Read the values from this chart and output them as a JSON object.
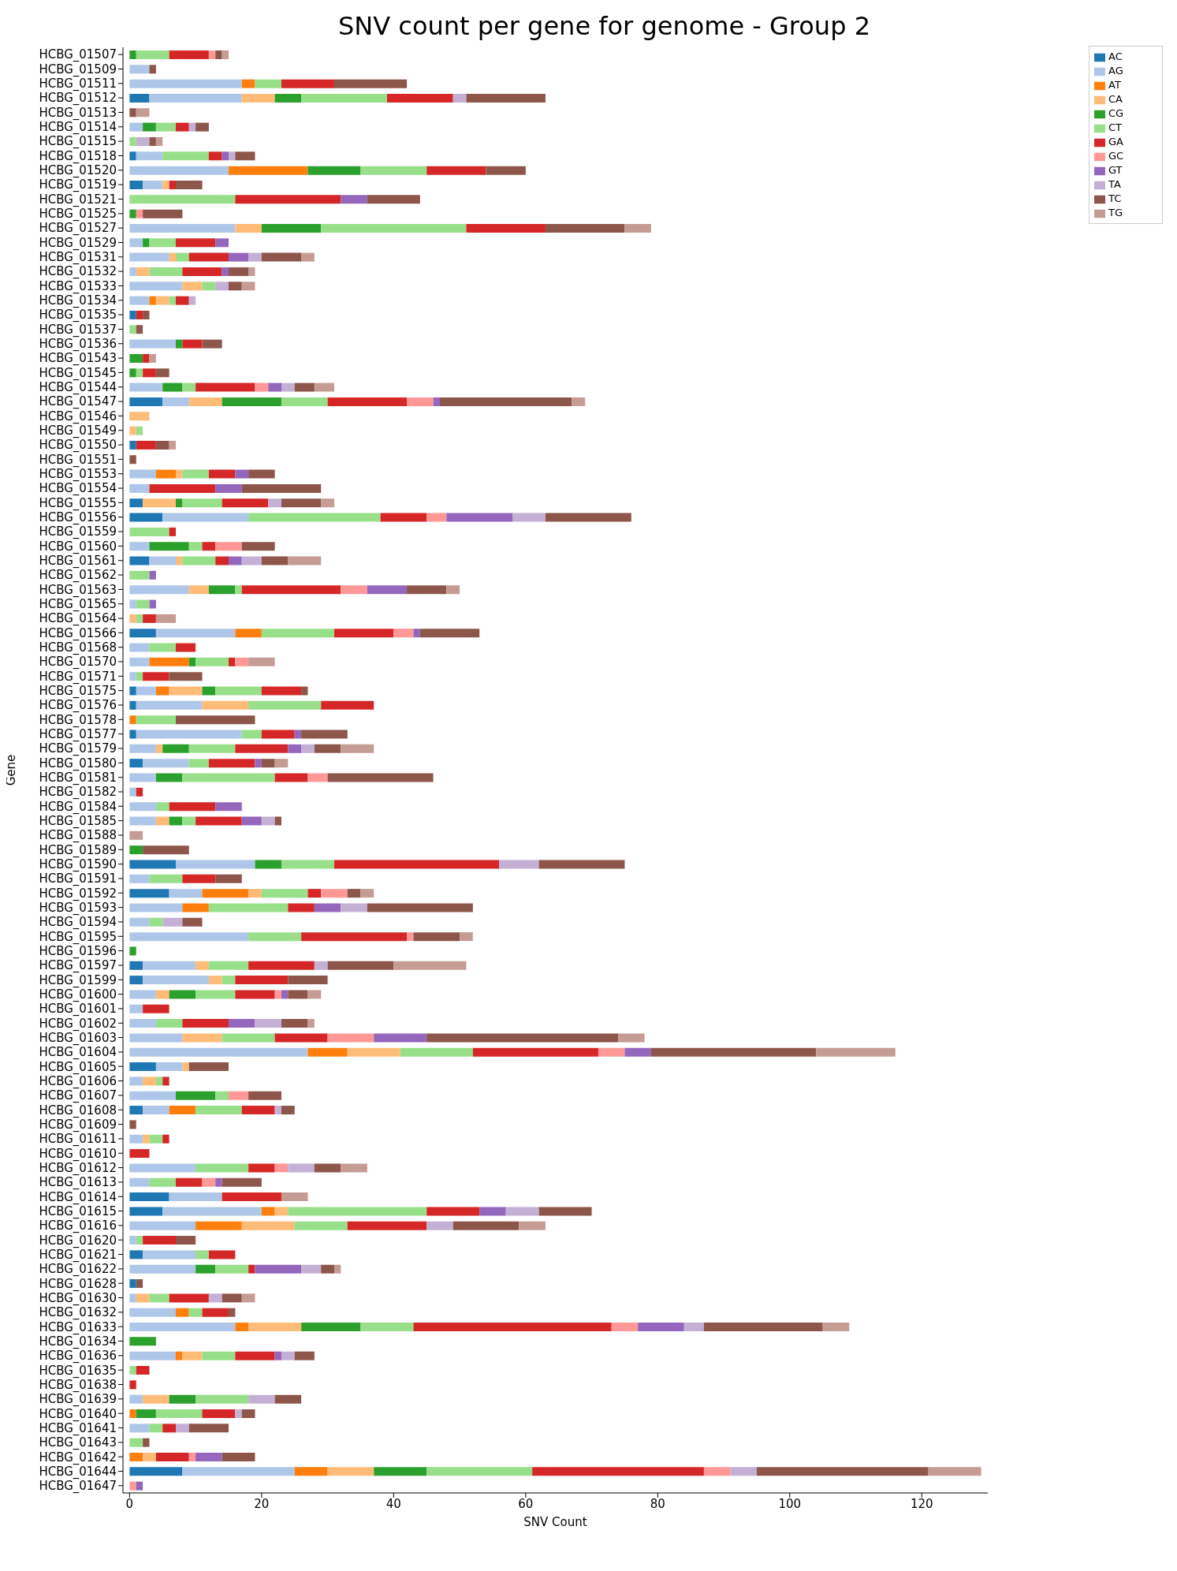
{
  "chart_data": {
    "type": "bar",
    "orientation": "horizontal",
    "stacked": true,
    "title": "SNV count per gene for genome - Group 2",
    "xlabel": "SNV Count",
    "ylabel": "Gene",
    "legend": "top right",
    "grid": false,
    "xlim": [
      -1,
      130
    ],
    "xticks": [
      0,
      20,
      40,
      60,
      80,
      100,
      120
    ],
    "categories": [
      "HCBG_01507",
      "HCBG_01509",
      "HCBG_01511",
      "HCBG_01512",
      "HCBG_01513",
      "HCBG_01514",
      "HCBG_01515",
      "HCBG_01518",
      "HCBG_01520",
      "HCBG_01519",
      "HCBG_01521",
      "HCBG_01525",
      "HCBG_01527",
      "HCBG_01529",
      "HCBG_01531",
      "HCBG_01532",
      "HCBG_01533",
      "HCBG_01534",
      "HCBG_01535",
      "HCBG_01537",
      "HCBG_01536",
      "HCBG_01543",
      "HCBG_01545",
      "HCBG_01544",
      "HCBG_01547",
      "HCBG_01546",
      "HCBG_01549",
      "HCBG_01550",
      "HCBG_01551",
      "HCBG_01553",
      "HCBG_01554",
      "HCBG_01555",
      "HCBG_01556",
      "HCBG_01559",
      "HCBG_01560",
      "HCBG_01561",
      "HCBG_01562",
      "HCBG_01563",
      "HCBG_01565",
      "HCBG_01564",
      "HCBG_01566",
      "HCBG_01568",
      "HCBG_01570",
      "HCBG_01571",
      "HCBG_01575",
      "HCBG_01576",
      "HCBG_01578",
      "HCBG_01577",
      "HCBG_01579",
      "HCBG_01580",
      "HCBG_01581",
      "HCBG_01582",
      "HCBG_01584",
      "HCBG_01585",
      "HCBG_01588",
      "HCBG_01589",
      "HCBG_01590",
      "HCBG_01591",
      "HCBG_01592",
      "HCBG_01593",
      "HCBG_01594",
      "HCBG_01595",
      "HCBG_01596",
      "HCBG_01597",
      "HCBG_01599",
      "HCBG_01600",
      "HCBG_01601",
      "HCBG_01602",
      "HCBG_01603",
      "HCBG_01604",
      "HCBG_01605",
      "HCBG_01606",
      "HCBG_01607",
      "HCBG_01608",
      "HCBG_01609",
      "HCBG_01611",
      "HCBG_01610",
      "HCBG_01612",
      "HCBG_01613",
      "HCBG_01614",
      "HCBG_01615",
      "HCBG_01616",
      "HCBG_01620",
      "HCBG_01621",
      "HCBG_01622",
      "HCBG_01628",
      "HCBG_01630",
      "HCBG_01632",
      "HCBG_01633",
      "HCBG_01634",
      "HCBG_01636",
      "HCBG_01635",
      "HCBG_01638",
      "HCBG_01639",
      "HCBG_01640",
      "HCBG_01641",
      "HCBG_01643",
      "HCBG_01642",
      "HCBG_01644",
      "HCBG_01647"
    ],
    "series": [
      {
        "name": "AC",
        "color": "#1f77b4",
        "values": [
          0,
          0,
          0,
          3,
          0,
          0,
          0,
          1,
          0,
          2,
          0,
          0,
          0,
          0,
          0,
          0,
          0,
          0,
          1,
          0,
          0,
          0,
          0,
          0,
          5,
          0,
          0,
          1,
          0,
          0,
          0,
          2,
          5,
          0,
          0,
          3,
          0,
          0,
          0,
          0,
          4,
          0,
          0,
          0,
          1,
          1,
          0,
          1,
          0,
          2,
          0,
          0,
          0,
          0,
          0,
          0,
          7,
          0,
          6,
          0,
          0,
          0,
          0,
          2,
          2,
          0,
          0,
          0,
          0,
          0,
          4,
          0,
          0,
          2,
          0,
          0,
          0,
          0,
          0,
          6,
          5,
          0,
          0,
          2,
          0,
          1,
          0,
          0,
          0,
          0,
          0,
          0,
          0,
          0,
          0,
          0,
          0,
          0,
          8,
          0
        ]
      },
      {
        "name": "AG",
        "color": "#aec7e8",
        "values": [
          0,
          3,
          17,
          14,
          0,
          2,
          0,
          4,
          15,
          3,
          0,
          0,
          16,
          2,
          6,
          1,
          8,
          3,
          0,
          0,
          7,
          0,
          0,
          5,
          4,
          0,
          0,
          0,
          0,
          4,
          3,
          0,
          13,
          0,
          3,
          4,
          0,
          9,
          1,
          0,
          12,
          3,
          3,
          1,
          3,
          10,
          0,
          16,
          4,
          7,
          4,
          1,
          4,
          4,
          0,
          0,
          12,
          3,
          5,
          8,
          3,
          18,
          0,
          8,
          10,
          4,
          2,
          4,
          8,
          27,
          4,
          2,
          7,
          4,
          0,
          2,
          0,
          10,
          3,
          8,
          15,
          10,
          1,
          8,
          10,
          0,
          1,
          7,
          16,
          0,
          7,
          0,
          0,
          2,
          0,
          3,
          0,
          0,
          17,
          0
        ]
      },
      {
        "name": "AT",
        "color": "#ff7f0e",
        "values": [
          0,
          0,
          2,
          0,
          0,
          0,
          0,
          0,
          12,
          0,
          0,
          0,
          0,
          0,
          0,
          0,
          0,
          1,
          0,
          0,
          0,
          0,
          0,
          0,
          0,
          0,
          0,
          0,
          0,
          3,
          0,
          0,
          0,
          0,
          0,
          0,
          0,
          0,
          0,
          0,
          4,
          0,
          6,
          0,
          2,
          0,
          1,
          0,
          0,
          0,
          0,
          0,
          0,
          0,
          0,
          0,
          0,
          0,
          7,
          4,
          0,
          0,
          0,
          0,
          0,
          0,
          0,
          0,
          0,
          6,
          0,
          0,
          0,
          4,
          0,
          0,
          0,
          0,
          0,
          0,
          2,
          7,
          0,
          0,
          0,
          0,
          0,
          2,
          2,
          0,
          1,
          0,
          0,
          0,
          1,
          0,
          0,
          2,
          5,
          0
        ]
      },
      {
        "name": "CA",
        "color": "#ffbb78",
        "values": [
          0,
          0,
          0,
          5,
          0,
          0,
          0,
          0,
          0,
          1,
          0,
          0,
          4,
          0,
          1,
          2,
          3,
          2,
          0,
          0,
          0,
          0,
          0,
          0,
          5,
          3,
          1,
          0,
          0,
          1,
          0,
          5,
          0,
          0,
          0,
          1,
          0,
          3,
          0,
          1,
          0,
          0,
          0,
          0,
          5,
          7,
          0,
          0,
          1,
          0,
          0,
          0,
          0,
          2,
          0,
          0,
          0,
          0,
          2,
          0,
          0,
          0,
          0,
          2,
          2,
          2,
          0,
          0,
          6,
          8,
          1,
          2,
          0,
          0,
          0,
          1,
          0,
          0,
          0,
          0,
          2,
          8,
          0,
          0,
          0,
          0,
          2,
          0,
          8,
          0,
          3,
          0,
          0,
          4,
          0,
          0,
          0,
          2,
          7,
          0
        ]
      },
      {
        "name": "CG",
        "color": "#2ca02c",
        "values": [
          1,
          0,
          0,
          4,
          0,
          2,
          0,
          0,
          8,
          0,
          0,
          1,
          9,
          1,
          0,
          0,
          0,
          0,
          0,
          0,
          1,
          2,
          1,
          3,
          9,
          0,
          0,
          0,
          0,
          0,
          0,
          1,
          0,
          0,
          6,
          0,
          0,
          4,
          0,
          0,
          0,
          0,
          1,
          0,
          2,
          0,
          0,
          0,
          4,
          0,
          4,
          0,
          0,
          2,
          0,
          2,
          4,
          0,
          0,
          0,
          0,
          0,
          1,
          0,
          0,
          4,
          0,
          0,
          0,
          0,
          0,
          0,
          6,
          0,
          0,
          0,
          0,
          0,
          0,
          0,
          0,
          0,
          0,
          0,
          3,
          0,
          0,
          0,
          9,
          4,
          0,
          0,
          0,
          4,
          3,
          0,
          0,
          0,
          8,
          0
        ]
      },
      {
        "name": "CT",
        "color": "#98df8a",
        "values": [
          5,
          0,
          4,
          13,
          0,
          3,
          1,
          7,
          10,
          0,
          16,
          0,
          22,
          4,
          2,
          5,
          2,
          1,
          0,
          1,
          0,
          0,
          1,
          2,
          7,
          0,
          1,
          0,
          0,
          4,
          0,
          6,
          20,
          6,
          2,
          5,
          3,
          1,
          2,
          1,
          11,
          4,
          5,
          1,
          7,
          11,
          6,
          3,
          7,
          3,
          14,
          0,
          2,
          2,
          0,
          0,
          8,
          5,
          7,
          12,
          2,
          8,
          0,
          6,
          2,
          6,
          0,
          4,
          8,
          11,
          0,
          1,
          2,
          7,
          0,
          2,
          0,
          8,
          4,
          0,
          21,
          8,
          1,
          2,
          5,
          0,
          3,
          2,
          8,
          0,
          5,
          1,
          0,
          8,
          7,
          2,
          2,
          0,
          16,
          0
        ]
      },
      {
        "name": "GA",
        "color": "#d62728",
        "values": [
          6,
          0,
          8,
          10,
          0,
          2,
          0,
          2,
          9,
          1,
          16,
          0,
          12,
          6,
          6,
          6,
          0,
          2,
          1,
          0,
          3,
          1,
          2,
          9,
          12,
          0,
          0,
          3,
          0,
          4,
          10,
          7,
          7,
          1,
          2,
          2,
          0,
          15,
          0,
          2,
          9,
          3,
          1,
          4,
          6,
          8,
          0,
          5,
          8,
          7,
          5,
          1,
          7,
          7,
          0,
          0,
          25,
          5,
          2,
          4,
          0,
          16,
          0,
          10,
          8,
          6,
          4,
          7,
          8,
          19,
          0,
          1,
          0,
          5,
          0,
          1,
          3,
          4,
          4,
          9,
          8,
          12,
          5,
          4,
          1,
          0,
          6,
          4,
          30,
          0,
          6,
          2,
          1,
          0,
          5,
          2,
          0,
          5,
          26,
          0
        ]
      },
      {
        "name": "GC",
        "color": "#ff9896",
        "values": [
          1,
          0,
          0,
          0,
          0,
          0,
          0,
          0,
          0,
          0,
          0,
          1,
          0,
          0,
          0,
          0,
          0,
          0,
          0,
          0,
          0,
          0,
          0,
          2,
          4,
          0,
          0,
          0,
          0,
          0,
          0,
          0,
          3,
          0,
          4,
          0,
          0,
          4,
          0,
          0,
          3,
          0,
          2,
          0,
          0,
          0,
          0,
          0,
          0,
          0,
          3,
          0,
          0,
          0,
          0,
          0,
          0,
          0,
          4,
          0,
          0,
          1,
          0,
          0,
          0,
          1,
          0,
          0,
          7,
          4,
          0,
          0,
          3,
          0,
          0,
          0,
          0,
          2,
          2,
          0,
          0,
          0,
          0,
          0,
          0,
          0,
          0,
          0,
          4,
          0,
          0,
          0,
          0,
          0,
          0,
          0,
          0,
          1,
          4,
          1
        ]
      },
      {
        "name": "GT",
        "color": "#9467bd",
        "values": [
          0,
          0,
          0,
          0,
          0,
          0,
          0,
          1,
          0,
          0,
          4,
          0,
          0,
          2,
          3,
          1,
          0,
          0,
          0,
          0,
          0,
          0,
          0,
          2,
          1,
          0,
          0,
          0,
          0,
          2,
          4,
          0,
          10,
          0,
          0,
          2,
          1,
          6,
          1,
          0,
          1,
          0,
          0,
          0,
          0,
          0,
          0,
          1,
          2,
          1,
          0,
          0,
          4,
          3,
          0,
          0,
          0,
          0,
          0,
          4,
          0,
          0,
          0,
          0,
          0,
          1,
          0,
          4,
          8,
          4,
          0,
          0,
          0,
          0,
          0,
          0,
          0,
          0,
          1,
          0,
          4,
          0,
          0,
          0,
          7,
          0,
          0,
          0,
          7,
          0,
          1,
          0,
          0,
          0,
          0,
          0,
          0,
          4,
          0,
          1
        ]
      },
      {
        "name": "TA",
        "color": "#c5b0d5",
        "values": [
          0,
          0,
          0,
          2,
          0,
          1,
          2,
          1,
          0,
          0,
          0,
          0,
          0,
          0,
          2,
          0,
          2,
          1,
          0,
          0,
          0,
          0,
          0,
          2,
          0,
          0,
          0,
          0,
          0,
          0,
          0,
          2,
          5,
          0,
          0,
          3,
          0,
          0,
          0,
          0,
          0,
          0,
          0,
          0,
          0,
          0,
          0,
          0,
          2,
          0,
          0,
          0,
          0,
          2,
          0,
          0,
          6,
          0,
          0,
          4,
          3,
          0,
          0,
          2,
          0,
          0,
          0,
          4,
          0,
          0,
          0,
          0,
          0,
          1,
          0,
          0,
          0,
          4,
          0,
          0,
          5,
          4,
          0,
          0,
          3,
          0,
          2,
          0,
          3,
          0,
          2,
          0,
          0,
          4,
          1,
          2,
          0,
          0,
          4,
          0
        ]
      },
      {
        "name": "TC",
        "color": "#8c564b",
        "values": [
          1,
          1,
          11,
          12,
          1,
          2,
          1,
          3,
          6,
          4,
          8,
          6,
          12,
          0,
          6,
          3,
          2,
          0,
          1,
          1,
          3,
          0,
          2,
          3,
          20,
          0,
          0,
          2,
          1,
          4,
          12,
          6,
          13,
          0,
          5,
          4,
          0,
          6,
          0,
          0,
          9,
          0,
          0,
          5,
          1,
          0,
          12,
          7,
          4,
          2,
          16,
          0,
          0,
          1,
          0,
          7,
          13,
          4,
          2,
          16,
          3,
          7,
          0,
          10,
          6,
          3,
          0,
          4,
          29,
          25,
          6,
          0,
          5,
          2,
          1,
          0,
          0,
          4,
          6,
          0,
          8,
          10,
          3,
          0,
          2,
          1,
          3,
          1,
          18,
          0,
          3,
          0,
          0,
          4,
          2,
          6,
          1,
          5,
          26,
          0
        ]
      },
      {
        "name": "TG",
        "color": "#c49c94",
        "values": [
          1,
          0,
          0,
          0,
          2,
          0,
          1,
          0,
          0,
          0,
          0,
          0,
          4,
          0,
          2,
          1,
          2,
          0,
          0,
          0,
          0,
          1,
          0,
          3,
          2,
          0,
          0,
          1,
          0,
          0,
          0,
          2,
          0,
          0,
          0,
          5,
          0,
          2,
          0,
          3,
          0,
          0,
          4,
          0,
          0,
          0,
          0,
          0,
          5,
          2,
          0,
          0,
          0,
          0,
          2,
          0,
          0,
          0,
          2,
          0,
          0,
          2,
          0,
          11,
          0,
          2,
          0,
          1,
          4,
          12,
          0,
          0,
          0,
          0,
          0,
          0,
          0,
          4,
          0,
          4,
          0,
          4,
          0,
          0,
          1,
          0,
          2,
          0,
          4,
          0,
          0,
          0,
          0,
          0,
          0,
          0,
          0,
          0,
          8,
          0
        ]
      }
    ]
  }
}
